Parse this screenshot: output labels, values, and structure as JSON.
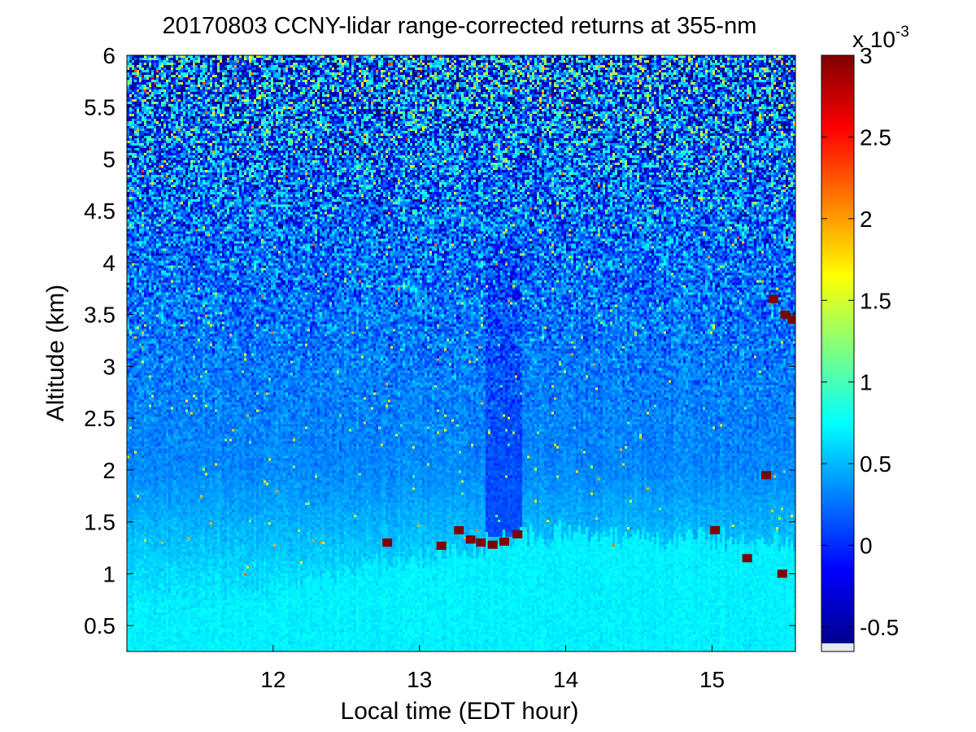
{
  "chart_data": {
    "type": "heatmap",
    "title": "20170803 CCNY-lidar range-corrected returns at 355-nm",
    "xlabel": "Local time (EDT hour)",
    "ylabel": "Altitude (km)",
    "xlim": [
      11.0,
      15.57
    ],
    "ylim": [
      0.25,
      6.0
    ],
    "x_ticks": [
      "12",
      "13",
      "14",
      "15"
    ],
    "y_ticks": [
      "0.5",
      "1",
      "1.5",
      "2",
      "2.5",
      "3",
      "3.5",
      "4",
      "4.5",
      "5",
      "5.5",
      "6"
    ],
    "colorbar": {
      "colormap": "jet",
      "range": [
        -0.6,
        3.0
      ],
      "exponent_prefix": "x 10",
      "exponent": "-3",
      "ticks": [
        "-0.5",
        "0",
        "0.5",
        "1",
        "1.5",
        "2",
        "2.5",
        "3"
      ]
    },
    "background_levels": [
      {
        "altitude_km": 0.3,
        "value": 0.75
      },
      {
        "altitude_km": 1.0,
        "value": 0.62
      },
      {
        "altitude_km": 2.0,
        "value": 0.33
      },
      {
        "altitude_km": 3.0,
        "value": 0.28
      },
      {
        "altitude_km": 4.0,
        "value": 0.22
      },
      {
        "altitude_km": 6.0,
        "value": 0.2
      }
    ],
    "mixed_layer_top_km": [
      {
        "time": 11.0,
        "height": 0.7
      },
      {
        "time": 11.5,
        "height": 0.7
      },
      {
        "time": 12.0,
        "height": 0.85
      },
      {
        "time": 12.5,
        "height": 1.0
      },
      {
        "time": 13.0,
        "height": 1.15
      },
      {
        "time": 13.5,
        "height": 1.3
      },
      {
        "time": 14.0,
        "height": 1.4
      },
      {
        "time": 14.5,
        "height": 1.35
      },
      {
        "time": 15.0,
        "height": 1.35
      },
      {
        "time": 15.57,
        "height": 1.3
      }
    ],
    "cloud_returns": [
      {
        "time": 12.78,
        "altitude_km": 1.3,
        "value": 3.0
      },
      {
        "time": 13.15,
        "altitude_km": 1.27,
        "value": 3.0
      },
      {
        "time": 13.27,
        "altitude_km": 1.42,
        "value": 3.0
      },
      {
        "time": 13.35,
        "altitude_km": 1.33,
        "value": 3.0
      },
      {
        "time": 13.42,
        "altitude_km": 1.3,
        "value": 3.0
      },
      {
        "time": 13.5,
        "altitude_km": 1.28,
        "value": 3.0
      },
      {
        "time": 13.58,
        "altitude_km": 1.31,
        "value": 3.0
      },
      {
        "time": 13.67,
        "altitude_km": 1.38,
        "value": 3.0
      },
      {
        "time": 15.02,
        "altitude_km": 1.42,
        "value": 3.0
      },
      {
        "time": 15.24,
        "altitude_km": 1.15,
        "value": 3.0
      },
      {
        "time": 15.37,
        "altitude_km": 1.95,
        "value": 3.0
      },
      {
        "time": 15.42,
        "altitude_km": 3.65,
        "value": 3.0
      },
      {
        "time": 15.48,
        "altitude_km": 1.0,
        "value": 3.0
      },
      {
        "time": 15.5,
        "altitude_km": 3.5,
        "value": 3.0
      },
      {
        "time": 15.55,
        "altitude_km": 3.45,
        "value": 3.0
      }
    ],
    "clear_column": {
      "time_range": [
        13.45,
        13.7
      ],
      "altitude_range_km": [
        1.35,
        4.2
      ],
      "value": 0.12
    }
  }
}
